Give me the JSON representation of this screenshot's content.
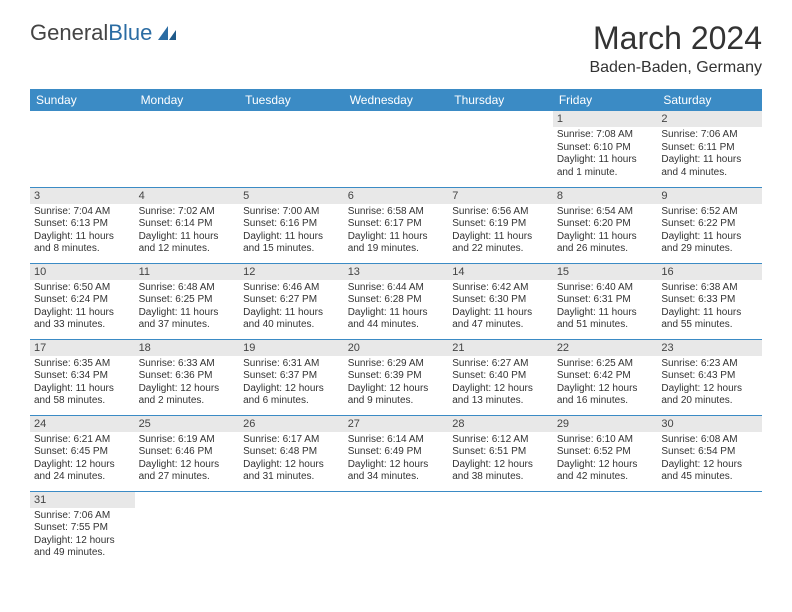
{
  "logo": {
    "name_a": "General",
    "name_b": "Blue"
  },
  "title": "March 2024",
  "location": "Baden-Baden, Germany",
  "colors": {
    "header_bg": "#3b8bc5",
    "header_fg": "#ffffff",
    "daynum_bg": "#e8e8e8",
    "row_border": "#3b8bc5",
    "logo_accent": "#2b6ca3"
  },
  "weekdays": [
    "Sunday",
    "Monday",
    "Tuesday",
    "Wednesday",
    "Thursday",
    "Friday",
    "Saturday"
  ],
  "days": [
    {
      "n": "",
      "sr": "",
      "ss": "",
      "dl": ""
    },
    {
      "n": "",
      "sr": "",
      "ss": "",
      "dl": ""
    },
    {
      "n": "",
      "sr": "",
      "ss": "",
      "dl": ""
    },
    {
      "n": "",
      "sr": "",
      "ss": "",
      "dl": ""
    },
    {
      "n": "",
      "sr": "",
      "ss": "",
      "dl": ""
    },
    {
      "n": "1",
      "sr": "Sunrise: 7:08 AM",
      "ss": "Sunset: 6:10 PM",
      "dl": "Daylight: 11 hours and 1 minute."
    },
    {
      "n": "2",
      "sr": "Sunrise: 7:06 AM",
      "ss": "Sunset: 6:11 PM",
      "dl": "Daylight: 11 hours and 4 minutes."
    },
    {
      "n": "3",
      "sr": "Sunrise: 7:04 AM",
      "ss": "Sunset: 6:13 PM",
      "dl": "Daylight: 11 hours and 8 minutes."
    },
    {
      "n": "4",
      "sr": "Sunrise: 7:02 AM",
      "ss": "Sunset: 6:14 PM",
      "dl": "Daylight: 11 hours and 12 minutes."
    },
    {
      "n": "5",
      "sr": "Sunrise: 7:00 AM",
      "ss": "Sunset: 6:16 PM",
      "dl": "Daylight: 11 hours and 15 minutes."
    },
    {
      "n": "6",
      "sr": "Sunrise: 6:58 AM",
      "ss": "Sunset: 6:17 PM",
      "dl": "Daylight: 11 hours and 19 minutes."
    },
    {
      "n": "7",
      "sr": "Sunrise: 6:56 AM",
      "ss": "Sunset: 6:19 PM",
      "dl": "Daylight: 11 hours and 22 minutes."
    },
    {
      "n": "8",
      "sr": "Sunrise: 6:54 AM",
      "ss": "Sunset: 6:20 PM",
      "dl": "Daylight: 11 hours and 26 minutes."
    },
    {
      "n": "9",
      "sr": "Sunrise: 6:52 AM",
      "ss": "Sunset: 6:22 PM",
      "dl": "Daylight: 11 hours and 29 minutes."
    },
    {
      "n": "10",
      "sr": "Sunrise: 6:50 AM",
      "ss": "Sunset: 6:24 PM",
      "dl": "Daylight: 11 hours and 33 minutes."
    },
    {
      "n": "11",
      "sr": "Sunrise: 6:48 AM",
      "ss": "Sunset: 6:25 PM",
      "dl": "Daylight: 11 hours and 37 minutes."
    },
    {
      "n": "12",
      "sr": "Sunrise: 6:46 AM",
      "ss": "Sunset: 6:27 PM",
      "dl": "Daylight: 11 hours and 40 minutes."
    },
    {
      "n": "13",
      "sr": "Sunrise: 6:44 AM",
      "ss": "Sunset: 6:28 PM",
      "dl": "Daylight: 11 hours and 44 minutes."
    },
    {
      "n": "14",
      "sr": "Sunrise: 6:42 AM",
      "ss": "Sunset: 6:30 PM",
      "dl": "Daylight: 11 hours and 47 minutes."
    },
    {
      "n": "15",
      "sr": "Sunrise: 6:40 AM",
      "ss": "Sunset: 6:31 PM",
      "dl": "Daylight: 11 hours and 51 minutes."
    },
    {
      "n": "16",
      "sr": "Sunrise: 6:38 AM",
      "ss": "Sunset: 6:33 PM",
      "dl": "Daylight: 11 hours and 55 minutes."
    },
    {
      "n": "17",
      "sr": "Sunrise: 6:35 AM",
      "ss": "Sunset: 6:34 PM",
      "dl": "Daylight: 11 hours and 58 minutes."
    },
    {
      "n": "18",
      "sr": "Sunrise: 6:33 AM",
      "ss": "Sunset: 6:36 PM",
      "dl": "Daylight: 12 hours and 2 minutes."
    },
    {
      "n": "19",
      "sr": "Sunrise: 6:31 AM",
      "ss": "Sunset: 6:37 PM",
      "dl": "Daylight: 12 hours and 6 minutes."
    },
    {
      "n": "20",
      "sr": "Sunrise: 6:29 AM",
      "ss": "Sunset: 6:39 PM",
      "dl": "Daylight: 12 hours and 9 minutes."
    },
    {
      "n": "21",
      "sr": "Sunrise: 6:27 AM",
      "ss": "Sunset: 6:40 PM",
      "dl": "Daylight: 12 hours and 13 minutes."
    },
    {
      "n": "22",
      "sr": "Sunrise: 6:25 AM",
      "ss": "Sunset: 6:42 PM",
      "dl": "Daylight: 12 hours and 16 minutes."
    },
    {
      "n": "23",
      "sr": "Sunrise: 6:23 AM",
      "ss": "Sunset: 6:43 PM",
      "dl": "Daylight: 12 hours and 20 minutes."
    },
    {
      "n": "24",
      "sr": "Sunrise: 6:21 AM",
      "ss": "Sunset: 6:45 PM",
      "dl": "Daylight: 12 hours and 24 minutes."
    },
    {
      "n": "25",
      "sr": "Sunrise: 6:19 AM",
      "ss": "Sunset: 6:46 PM",
      "dl": "Daylight: 12 hours and 27 minutes."
    },
    {
      "n": "26",
      "sr": "Sunrise: 6:17 AM",
      "ss": "Sunset: 6:48 PM",
      "dl": "Daylight: 12 hours and 31 minutes."
    },
    {
      "n": "27",
      "sr": "Sunrise: 6:14 AM",
      "ss": "Sunset: 6:49 PM",
      "dl": "Daylight: 12 hours and 34 minutes."
    },
    {
      "n": "28",
      "sr": "Sunrise: 6:12 AM",
      "ss": "Sunset: 6:51 PM",
      "dl": "Daylight: 12 hours and 38 minutes."
    },
    {
      "n": "29",
      "sr": "Sunrise: 6:10 AM",
      "ss": "Sunset: 6:52 PM",
      "dl": "Daylight: 12 hours and 42 minutes."
    },
    {
      "n": "30",
      "sr": "Sunrise: 6:08 AM",
      "ss": "Sunset: 6:54 PM",
      "dl": "Daylight: 12 hours and 45 minutes."
    },
    {
      "n": "31",
      "sr": "Sunrise: 7:06 AM",
      "ss": "Sunset: 7:55 PM",
      "dl": "Daylight: 12 hours and 49 minutes."
    },
    {
      "n": "",
      "sr": "",
      "ss": "",
      "dl": ""
    },
    {
      "n": "",
      "sr": "",
      "ss": "",
      "dl": ""
    },
    {
      "n": "",
      "sr": "",
      "ss": "",
      "dl": ""
    },
    {
      "n": "",
      "sr": "",
      "ss": "",
      "dl": ""
    },
    {
      "n": "",
      "sr": "",
      "ss": "",
      "dl": ""
    },
    {
      "n": "",
      "sr": "",
      "ss": "",
      "dl": ""
    }
  ]
}
